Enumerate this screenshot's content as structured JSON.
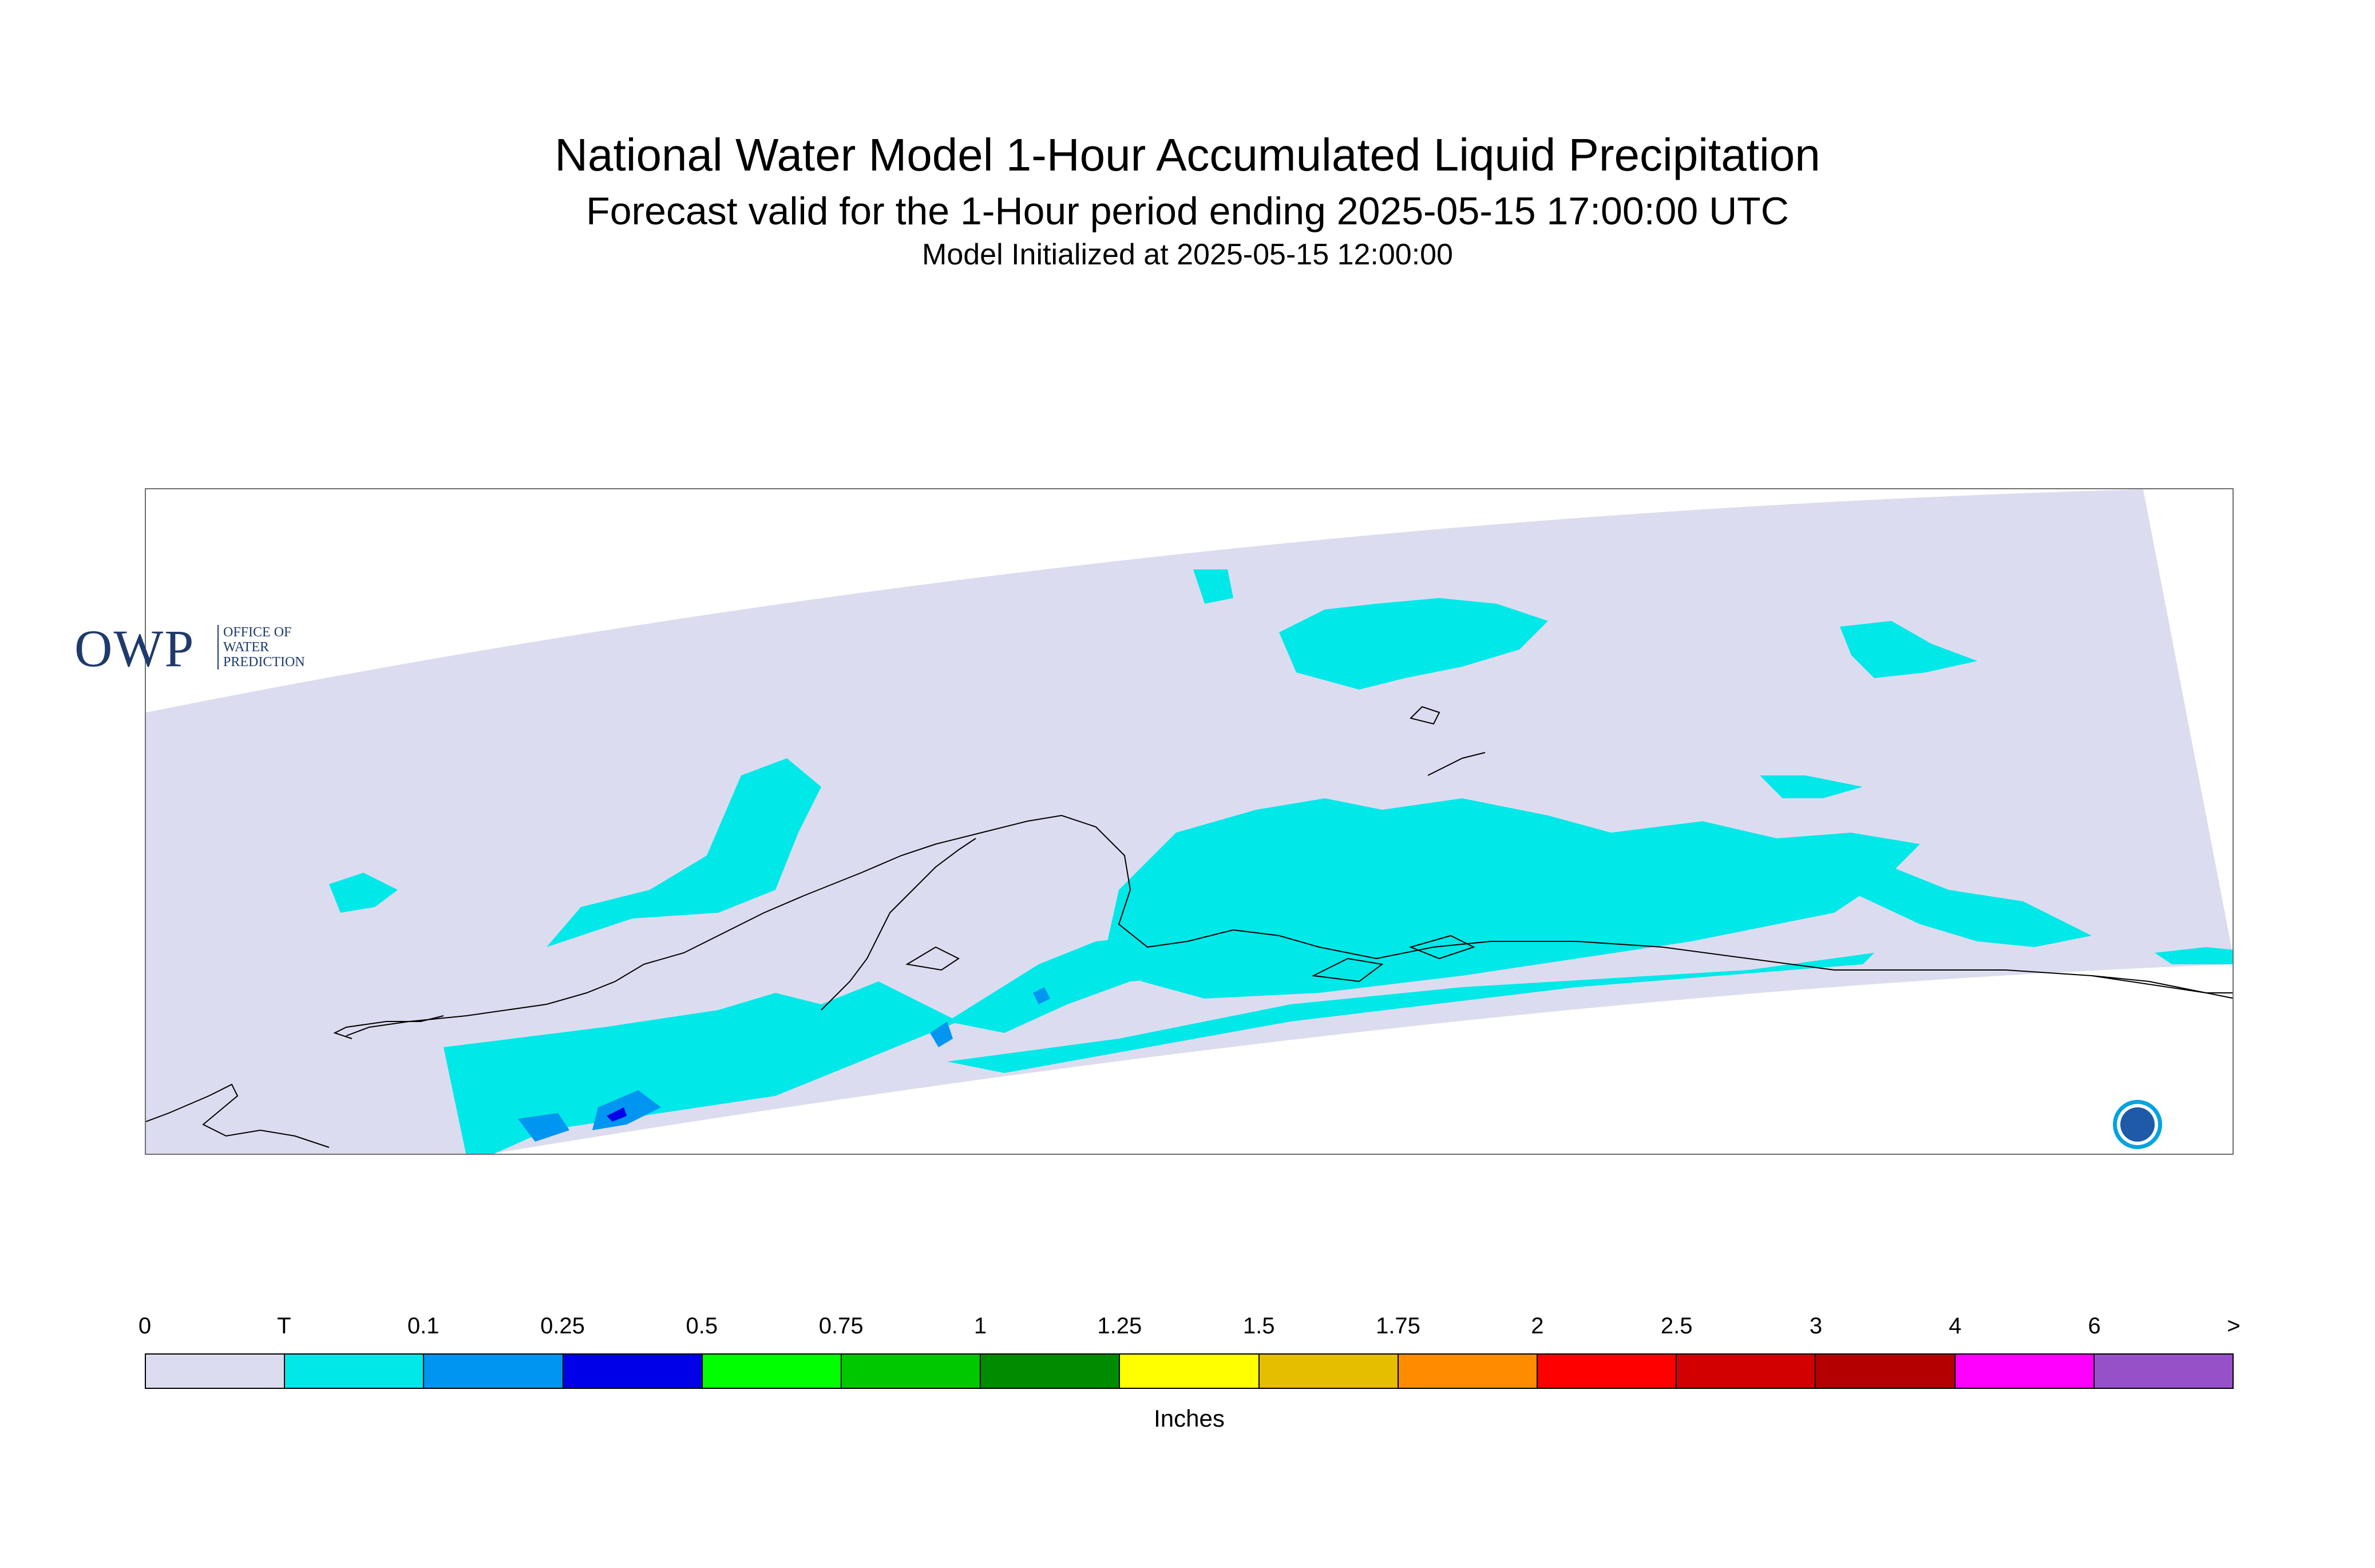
{
  "header": {
    "title": "National Water Model 1-Hour Accumulated Liquid Precipitation",
    "subtitle": "Forecast valid for the 1-Hour period ending 2025-05-15 17:00:00 UTC",
    "init": "Model Initialized at 2025-05-15 12:00:00"
  },
  "logos": {
    "owp_main": "OWP",
    "owp_sub": [
      "OFFICE OF",
      "WATER",
      "PREDICTION"
    ],
    "noaa_label": "NOAA",
    "noaa_colors": {
      "outer": "#00a3e0",
      "inner": "#1e5aa8",
      "band": "#ffffff"
    }
  },
  "map": {
    "region": "Alaska",
    "colors": {
      "domain": "#dcdcf0",
      "trace": "#00e8e8",
      "light": "#0095f0",
      "heavy": "#0000e8",
      "coast": "#000000"
    }
  },
  "legend": {
    "units": "Inches",
    "labels": [
      "0",
      "T",
      "0.1",
      "0.25",
      "0.5",
      "0.75",
      "1",
      "1.25",
      "1.5",
      "1.75",
      "2",
      "2.5",
      "3",
      "4",
      "6",
      ">"
    ],
    "colors": [
      "#dcdcf0",
      "#00e8e8",
      "#0095f0",
      "#0000e8",
      "#00ff00",
      "#00c800",
      "#008c00",
      "#ffff00",
      "#e6be00",
      "#ff8c00",
      "#ff0000",
      "#d20000",
      "#b40000",
      "#ff00ff",
      "#9650c8"
    ]
  }
}
